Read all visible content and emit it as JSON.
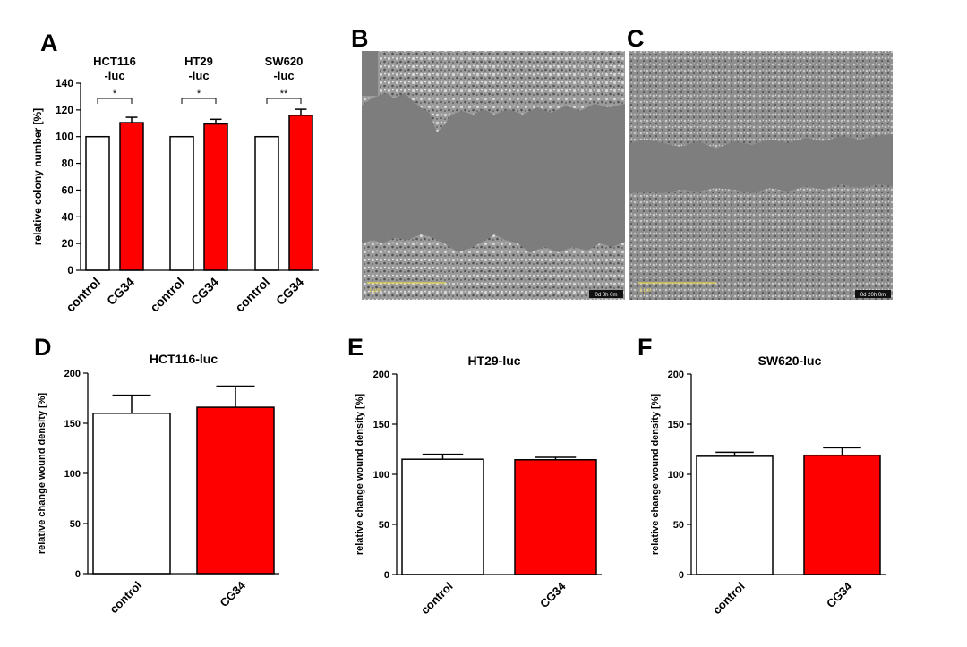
{
  "panel_letters": {
    "A": "A",
    "B": "B",
    "C": "C",
    "D": "D",
    "E": "E",
    "F": "F"
  },
  "colors": {
    "control": "#ffffff",
    "cg34": "#ff0000",
    "axis": "#000000",
    "scalebar": "#e8d64a"
  },
  "micrographs": {
    "B": {
      "timestamp": "0d 0h 0m",
      "scalebar_text": "1 μm"
    },
    "C": {
      "timestamp": "0d 20h 0m",
      "scalebar_text": "1 μm"
    }
  },
  "chart_data": [
    {
      "id": "A",
      "type": "bar",
      "ylabel": "relative colony number [%]",
      "ylim": [
        0,
        140
      ],
      "yticks": [
        0,
        20,
        40,
        60,
        80,
        100,
        120,
        140
      ],
      "groups": [
        {
          "title_line1": "HCT116",
          "title_line2": "-luc",
          "significance": "*",
          "categories": [
            "control",
            "CG34"
          ],
          "values": [
            100,
            110.5
          ],
          "errors": [
            0,
            4
          ]
        },
        {
          "title_line1": "HT29",
          "title_line2": "-luc",
          "significance": "*",
          "categories": [
            "control",
            "CG34"
          ],
          "values": [
            100,
            109.5
          ],
          "errors": [
            0,
            3.5
          ]
        },
        {
          "title_line1": "SW620",
          "title_line2": "-luc",
          "significance": "**",
          "categories": [
            "control",
            "CG34"
          ],
          "values": [
            100,
            116
          ],
          "errors": [
            0,
            4.5
          ]
        }
      ]
    },
    {
      "id": "D",
      "type": "bar",
      "title": "HCT116-luc",
      "ylabel": "relative change wound density [%]",
      "ylim": [
        0,
        200
      ],
      "yticks": [
        0,
        50,
        100,
        150,
        200
      ],
      "categories": [
        "control",
        "CG34"
      ],
      "values": [
        160,
        166
      ],
      "errors": [
        18,
        21
      ]
    },
    {
      "id": "E",
      "type": "bar",
      "title": "HT29-luc",
      "ylabel": "relative change wound density [%]",
      "ylim": [
        0,
        200
      ],
      "yticks": [
        0,
        50,
        100,
        150,
        200
      ],
      "categories": [
        "control",
        "CG34"
      ],
      "values": [
        115,
        114.5
      ],
      "errors": [
        5,
        2.5
      ]
    },
    {
      "id": "F",
      "type": "bar",
      "title": "SW620-luc",
      "ylabel": "relative change wound density [%]",
      "ylim": [
        0,
        200
      ],
      "yticks": [
        0,
        50,
        100,
        150,
        200
      ],
      "categories": [
        "control",
        "CG34"
      ],
      "values": [
        118,
        119
      ],
      "errors": [
        4,
        7.5
      ]
    }
  ]
}
